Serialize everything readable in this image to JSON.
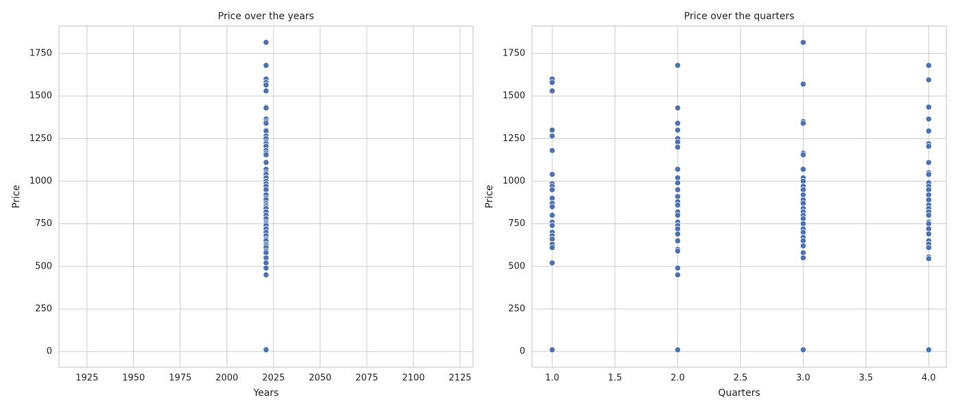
{
  "chart_data": [
    {
      "type": "scatter",
      "title": "Price over the years",
      "x_label": "Years",
      "y_label": "Price",
      "color": "#4c72b0",
      "grid": true,
      "xlim": [
        1910,
        2132
      ],
      "xticks": [
        1925,
        1950,
        1975,
        2000,
        2025,
        2050,
        2075,
        2100,
        2125
      ],
      "ylim": [
        -92,
        1911
      ],
      "yticks": [
        0,
        250,
        500,
        750,
        1000,
        1250,
        1500,
        1750
      ],
      "x": [
        2021,
        2021,
        2021,
        2021,
        2021,
        2021,
        2021,
        2021,
        2021,
        2021,
        2021,
        2021,
        2021,
        2021,
        2021,
        2021,
        2021,
        2021,
        2021,
        2021,
        2021,
        2021,
        2021,
        2021,
        2021,
        2021,
        2021,
        2021,
        2021,
        2021,
        2021,
        2021,
        2021,
        2021,
        2021,
        2021,
        2021,
        2021,
        2021,
        2021,
        2021,
        2021,
        2021,
        2021,
        2021,
        2021,
        2021,
        2021,
        2021,
        2021,
        2021,
        2021,
        2021,
        2021,
        2021,
        2021,
        2021,
        2021,
        2021
      ],
      "values": [
        1815,
        1680,
        1600,
        1580,
        1565,
        1530,
        1435,
        1430,
        1365,
        1350,
        1340,
        1300,
        1295,
        1265,
        1250,
        1230,
        1220,
        1205,
        1180,
        1165,
        1155,
        1110,
        1070,
        1050,
        1040,
        1020,
        1000,
        985,
        970,
        950,
        920,
        900,
        890,
        870,
        860,
        850,
        840,
        820,
        800,
        780,
        760,
        750,
        740,
        720,
        700,
        680,
        660,
        650,
        630,
        620,
        610,
        590,
        580,
        550,
        520,
        490,
        450,
        15,
        10
      ]
    },
    {
      "type": "scatter",
      "title": "Price over the quarters",
      "x_label": "Quarters",
      "y_label": "Price",
      "color": "#4c72b0",
      "grid": true,
      "xlim": [
        0.84,
        4.14
      ],
      "xticks": [
        {
          "value": 1,
          "label": "1.0"
        },
        {
          "value": 1.5,
          "label": "1.5"
        },
        {
          "value": 2,
          "label": "2.0"
        },
        {
          "value": 2.5,
          "label": "2.5"
        },
        {
          "value": 3,
          "label": "3.0"
        },
        {
          "value": 3.5,
          "label": "3.5"
        },
        {
          "value": 4,
          "label": "4.0"
        }
      ],
      "ylim": [
        -92,
        1911
      ],
      "yticks": [
        0,
        250,
        500,
        750,
        1000,
        1250,
        1500,
        1750
      ],
      "x": [
        1,
        1,
        1,
        1,
        1,
        1,
        1,
        1,
        1,
        1,
        1,
        1,
        1,
        1,
        1,
        1,
        1,
        1,
        1,
        1,
        1,
        1,
        1,
        2,
        2,
        2,
        2,
        2,
        2,
        2,
        2,
        2,
        2,
        2,
        2,
        2,
        2,
        2,
        2,
        2,
        2,
        2,
        2,
        2,
        2,
        2,
        2,
        2,
        2,
        3,
        3,
        3,
        3,
        3,
        3,
        3,
        3,
        3,
        3,
        3,
        3,
        3,
        3,
        3,
        3,
        3,
        3,
        3,
        3,
        3,
        3,
        3,
        3,
        3,
        3,
        3,
        4,
        4,
        4,
        4,
        4,
        4,
        4,
        4,
        4,
        4,
        4,
        4,
        4,
        4,
        4,
        4,
        4,
        4,
        4,
        4,
        4,
        4,
        4,
        4,
        4,
        4,
        4,
        4,
        4
      ],
      "values": [
        1600,
        1580,
        1530,
        1300,
        1265,
        1180,
        1040,
        985,
        970,
        950,
        900,
        870,
        850,
        800,
        760,
        740,
        700,
        680,
        660,
        630,
        610,
        520,
        10,
        1680,
        1430,
        1340,
        1300,
        1250,
        1230,
        1200,
        1070,
        1020,
        990,
        950,
        910,
        880,
        860,
        820,
        800,
        760,
        740,
        720,
        690,
        650,
        600,
        590,
        490,
        450,
        10,
        1815,
        1570,
        1350,
        1340,
        1165,
        1155,
        1070,
        1020,
        1000,
        970,
        950,
        920,
        890,
        870,
        840,
        820,
        800,
        780,
        750,
        720,
        700,
        670,
        650,
        620,
        580,
        550,
        10,
        1680,
        1595,
        1435,
        1365,
        1295,
        1220,
        1205,
        1110,
        1050,
        1040,
        990,
        970,
        950,
        920,
        890,
        860,
        840,
        820,
        800,
        760,
        750,
        720,
        690,
        650,
        630,
        610,
        555,
        545,
        10
      ]
    }
  ]
}
